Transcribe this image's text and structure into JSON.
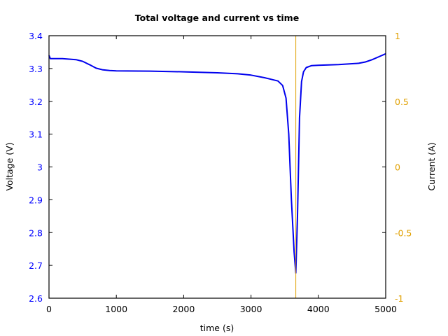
{
  "chart_data": {
    "type": "line",
    "title": "Total voltage and current vs time",
    "xlabel": "time (s)",
    "ylabel": "Voltage (V)",
    "y2label": "Current (A)",
    "xlim": [
      0,
      5000
    ],
    "ylim": [
      2.6,
      3.4
    ],
    "y2lim": [
      -1,
      1
    ],
    "xticks": [
      "0",
      "1000",
      "2000",
      "3000",
      "4000",
      "5000"
    ],
    "yticks": [
      "2.6",
      "2.7",
      "2.8",
      "2.9",
      "3",
      "3.1",
      "3.2",
      "3.3",
      "3.4"
    ],
    "y2ticks": [
      "-1",
      "-0.5",
      "0",
      "0.5",
      "1"
    ],
    "grid": false,
    "legend": null,
    "colors": {
      "voltage": "#0000ee",
      "current": "#e0a000",
      "left_axis": "#0000ff",
      "right_axis": "#e0a000"
    },
    "series": [
      {
        "name": "Voltage",
        "axis": "left",
        "x": [
          0,
          20,
          200,
          400,
          500,
          600,
          700,
          800,
          900,
          1000,
          1500,
          2000,
          2500,
          2800,
          3000,
          3200,
          3400,
          3470,
          3520,
          3560,
          3600,
          3640,
          3665,
          3690,
          3720,
          3750,
          3780,
          3820,
          3900,
          4000,
          4300,
          4600,
          4700,
          4800,
          4900,
          5000
        ],
        "values": [
          3.34,
          3.33,
          3.33,
          3.327,
          3.322,
          3.312,
          3.301,
          3.296,
          3.294,
          3.293,
          3.292,
          3.29,
          3.287,
          3.284,
          3.28,
          3.272,
          3.262,
          3.248,
          3.21,
          3.1,
          2.9,
          2.74,
          2.677,
          2.85,
          3.15,
          3.26,
          3.29,
          3.303,
          3.309,
          3.31,
          3.312,
          3.316,
          3.32,
          3.327,
          3.336,
          3.345
        ]
      },
      {
        "name": "Current",
        "axis": "right",
        "x": [
          3665,
          3665
        ],
        "values": [
          -1,
          1
        ]
      }
    ]
  }
}
